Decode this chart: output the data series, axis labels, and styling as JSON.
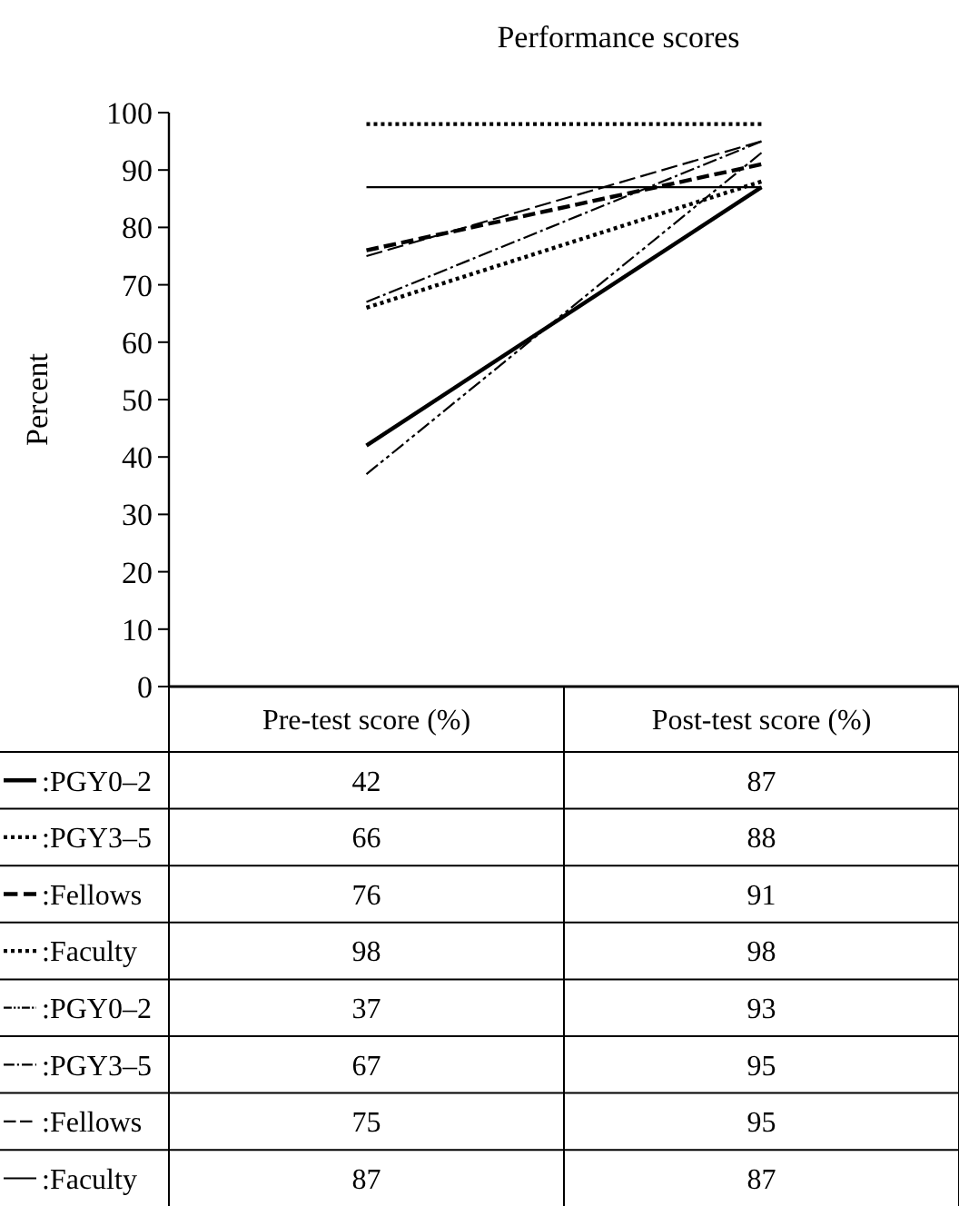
{
  "chart_data": {
    "type": "line",
    "title": "Performance scores",
    "ylabel": "Percent",
    "categories": [
      "Pre-test score (%)",
      "Post-test score (%)"
    ],
    "ylim": [
      0,
      100
    ],
    "yticks": [
      0,
      10,
      20,
      30,
      40,
      50,
      60,
      70,
      80,
      90,
      100
    ],
    "grid": false,
    "marker": "none",
    "legend": "bottom left",
    "data_labels": true,
    "series": [
      {
        "name": ":PGY0–2",
        "color": "#000000",
        "values": [
          42,
          87
        ],
        "line_style": "solid"
      },
      {
        "name": ":PGY3–5",
        "color": "#000000",
        "values": [
          66,
          88
        ],
        "line_style": "dotted"
      },
      {
        "name": ":Fellows",
        "color": "#000000",
        "values": [
          76,
          91
        ],
        "line_style": "dashed"
      },
      {
        "name": ":Faculty",
        "color": "#000000",
        "values": [
          98,
          98
        ],
        "line_style": "dotted"
      },
      {
        "name": ":PGY0–2",
        "color": "#000000",
        "values": [
          37,
          93
        ],
        "line_style": "dashdotdot"
      },
      {
        "name": ":PGY3–5",
        "color": "#000000",
        "values": [
          67,
          95
        ],
        "line_style": "dashdot"
      },
      {
        "name": ":Fellows",
        "color": "#000000",
        "values": [
          75,
          95
        ],
        "line_style": "dashed"
      },
      {
        "name": ":Faculty",
        "color": "#000000",
        "values": [
          87,
          87
        ],
        "line_style": "solid"
      }
    ]
  }
}
